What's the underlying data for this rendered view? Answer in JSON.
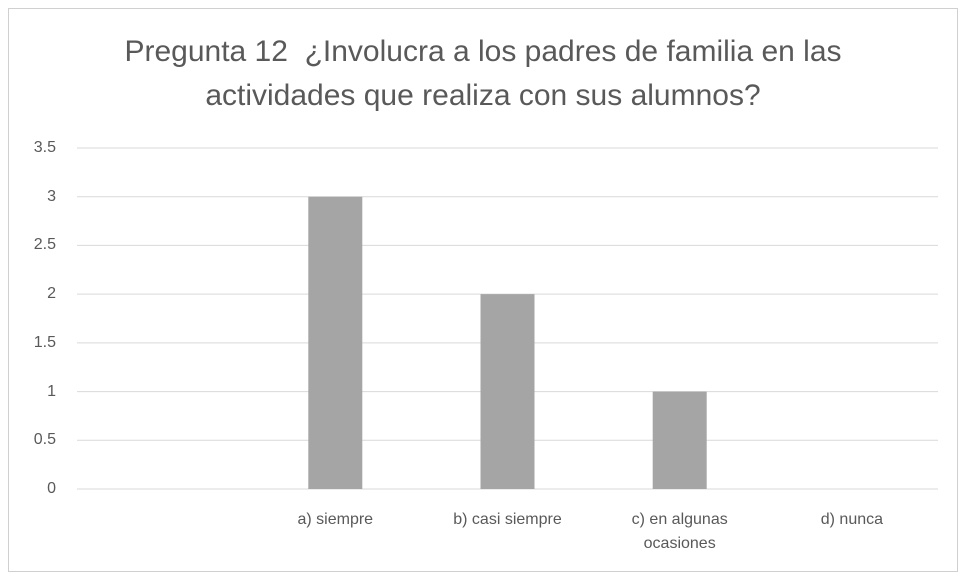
{
  "chart_data": {
    "type": "bar",
    "title": "Pregunta 12  ¿Involucra a los padres de familia en las actividades que realiza con sus alumnos?",
    "categories": [
      null,
      "a) siempre",
      "b) casi siempre",
      "c) en algunas ocasiones",
      "d) nunca"
    ],
    "values": [
      null,
      3,
      2,
      1,
      0
    ],
    "color": "#a5a5a5",
    "ylim": [
      0,
      3.5
    ],
    "yticks": [
      0,
      0.5,
      1,
      1.5,
      2,
      2.5,
      3,
      3.5
    ],
    "grid": true
  }
}
